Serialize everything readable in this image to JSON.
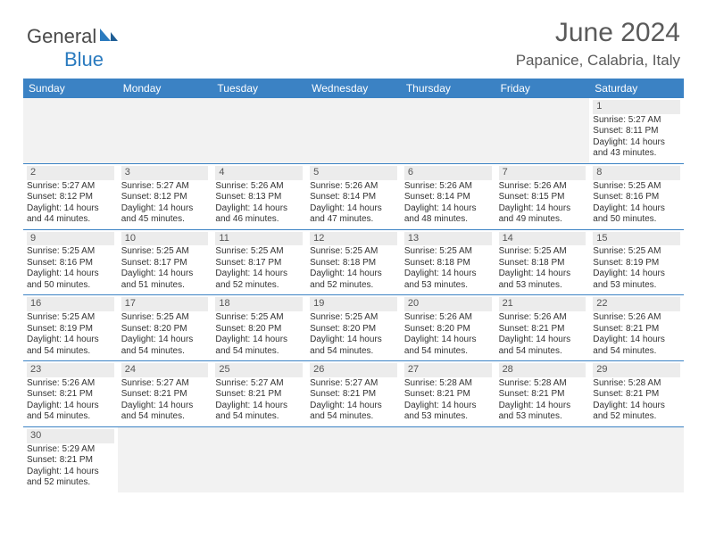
{
  "brand": {
    "name1": "General",
    "name2": "Blue"
  },
  "title": "June 2024",
  "location": "Papanice, Calabria, Italy",
  "colors": {
    "header_bg": "#3b82c4",
    "header_text": "#ffffff",
    "daynum_bg": "#ececec",
    "cell_border": "#3b82c4",
    "empty_bg": "#f2f2f2",
    "text": "#333333",
    "brand_gray": "#4a4a4a",
    "brand_blue": "#2b7bbf"
  },
  "weekdays": [
    "Sunday",
    "Monday",
    "Tuesday",
    "Wednesday",
    "Thursday",
    "Friday",
    "Saturday"
  ],
  "weeks": [
    [
      null,
      null,
      null,
      null,
      null,
      null,
      {
        "d": "1",
        "sr": "5:27 AM",
        "ss": "8:11 PM",
        "dl": "14 hours and 43 minutes."
      }
    ],
    [
      {
        "d": "2",
        "sr": "5:27 AM",
        "ss": "8:12 PM",
        "dl": "14 hours and 44 minutes."
      },
      {
        "d": "3",
        "sr": "5:27 AM",
        "ss": "8:12 PM",
        "dl": "14 hours and 45 minutes."
      },
      {
        "d": "4",
        "sr": "5:26 AM",
        "ss": "8:13 PM",
        "dl": "14 hours and 46 minutes."
      },
      {
        "d": "5",
        "sr": "5:26 AM",
        "ss": "8:14 PM",
        "dl": "14 hours and 47 minutes."
      },
      {
        "d": "6",
        "sr": "5:26 AM",
        "ss": "8:14 PM",
        "dl": "14 hours and 48 minutes."
      },
      {
        "d": "7",
        "sr": "5:26 AM",
        "ss": "8:15 PM",
        "dl": "14 hours and 49 minutes."
      },
      {
        "d": "8",
        "sr": "5:25 AM",
        "ss": "8:16 PM",
        "dl": "14 hours and 50 minutes."
      }
    ],
    [
      {
        "d": "9",
        "sr": "5:25 AM",
        "ss": "8:16 PM",
        "dl": "14 hours and 50 minutes."
      },
      {
        "d": "10",
        "sr": "5:25 AM",
        "ss": "8:17 PM",
        "dl": "14 hours and 51 minutes."
      },
      {
        "d": "11",
        "sr": "5:25 AM",
        "ss": "8:17 PM",
        "dl": "14 hours and 52 minutes."
      },
      {
        "d": "12",
        "sr": "5:25 AM",
        "ss": "8:18 PM",
        "dl": "14 hours and 52 minutes."
      },
      {
        "d": "13",
        "sr": "5:25 AM",
        "ss": "8:18 PM",
        "dl": "14 hours and 53 minutes."
      },
      {
        "d": "14",
        "sr": "5:25 AM",
        "ss": "8:18 PM",
        "dl": "14 hours and 53 minutes."
      },
      {
        "d": "15",
        "sr": "5:25 AM",
        "ss": "8:19 PM",
        "dl": "14 hours and 53 minutes."
      }
    ],
    [
      {
        "d": "16",
        "sr": "5:25 AM",
        "ss": "8:19 PM",
        "dl": "14 hours and 54 minutes."
      },
      {
        "d": "17",
        "sr": "5:25 AM",
        "ss": "8:20 PM",
        "dl": "14 hours and 54 minutes."
      },
      {
        "d": "18",
        "sr": "5:25 AM",
        "ss": "8:20 PM",
        "dl": "14 hours and 54 minutes."
      },
      {
        "d": "19",
        "sr": "5:25 AM",
        "ss": "8:20 PM",
        "dl": "14 hours and 54 minutes."
      },
      {
        "d": "20",
        "sr": "5:26 AM",
        "ss": "8:20 PM",
        "dl": "14 hours and 54 minutes."
      },
      {
        "d": "21",
        "sr": "5:26 AM",
        "ss": "8:21 PM",
        "dl": "14 hours and 54 minutes."
      },
      {
        "d": "22",
        "sr": "5:26 AM",
        "ss": "8:21 PM",
        "dl": "14 hours and 54 minutes."
      }
    ],
    [
      {
        "d": "23",
        "sr": "5:26 AM",
        "ss": "8:21 PM",
        "dl": "14 hours and 54 minutes."
      },
      {
        "d": "24",
        "sr": "5:27 AM",
        "ss": "8:21 PM",
        "dl": "14 hours and 54 minutes."
      },
      {
        "d": "25",
        "sr": "5:27 AM",
        "ss": "8:21 PM",
        "dl": "14 hours and 54 minutes."
      },
      {
        "d": "26",
        "sr": "5:27 AM",
        "ss": "8:21 PM",
        "dl": "14 hours and 54 minutes."
      },
      {
        "d": "27",
        "sr": "5:28 AM",
        "ss": "8:21 PM",
        "dl": "14 hours and 53 minutes."
      },
      {
        "d": "28",
        "sr": "5:28 AM",
        "ss": "8:21 PM",
        "dl": "14 hours and 53 minutes."
      },
      {
        "d": "29",
        "sr": "5:28 AM",
        "ss": "8:21 PM",
        "dl": "14 hours and 52 minutes."
      }
    ],
    [
      {
        "d": "30",
        "sr": "5:29 AM",
        "ss": "8:21 PM",
        "dl": "14 hours and 52 minutes."
      },
      null,
      null,
      null,
      null,
      null,
      null
    ]
  ],
  "labels": {
    "sunrise": "Sunrise: ",
    "sunset": "Sunset: ",
    "daylight": "Daylight: "
  }
}
